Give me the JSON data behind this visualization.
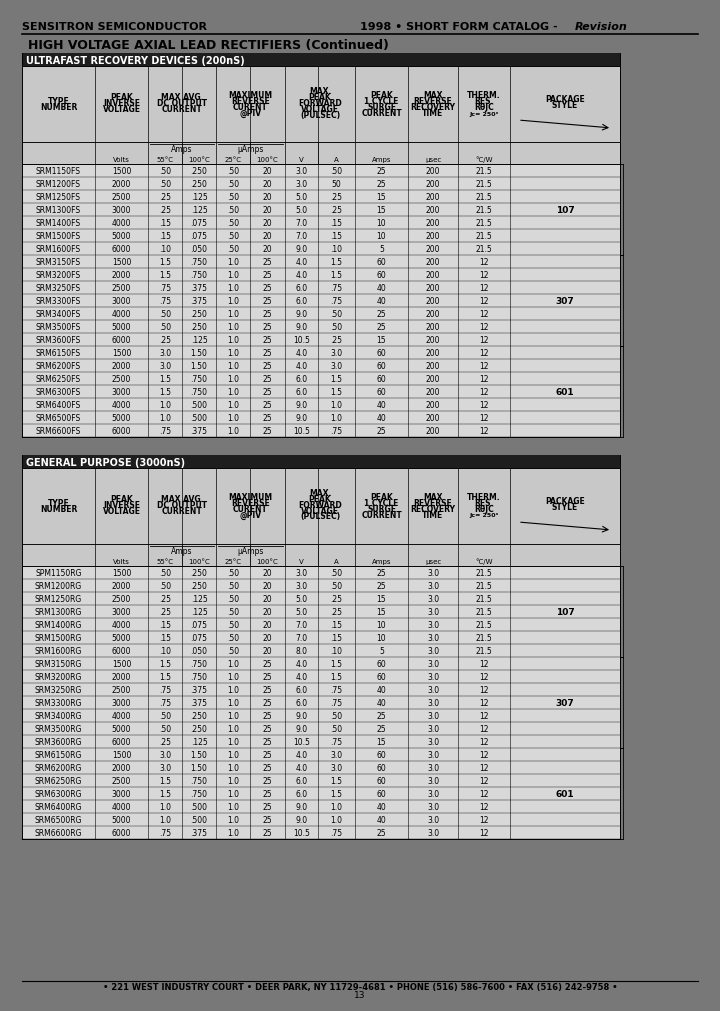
{
  "header_left": "SENSITRON SEMICONDUCTOR",
  "header_right_normal": "1998 • SHORT FORM CATALOG - ",
  "header_right_italic": "Revision",
  "page_title": "HIGH VOLTAGE AXIAL LEAD RECTIFIERS (Continued)",
  "bg_color": "#787878",
  "table_bg": "#c8c8c8",
  "header_bg": "#c8c8c8",
  "title_bg": "#1e1e1e",
  "row_bg": "#d8d8d8",
  "table1_title": "ULTRAFAST RECOVERY DEVICES (200nS)",
  "table2_title": "GENERAL PURPOSE (3000nS)",
  "table1_data": [
    [
      "SRM1150FS",
      "1500",
      ".50",
      ".250",
      ".50",
      "20",
      "3.0",
      ".50",
      "25",
      "200",
      "21.5"
    ],
    [
      "SRM1200FS",
      "2000",
      ".50",
      ".250",
      ".50",
      "20",
      "3.0",
      "50",
      "25",
      "200",
      "21.5"
    ],
    [
      "SRM1250FS",
      "2500",
      ".25",
      ".125",
      ".50",
      "20",
      "5.0",
      ".25",
      "15",
      "200",
      "21.5"
    ],
    [
      "SRM1300FS",
      "3000",
      ".25",
      ".125",
      ".50",
      "20",
      "5.0",
      ".25",
      "15",
      "200",
      "21.5"
    ],
    [
      "SRM1400FS",
      "4000",
      ".15",
      ".075",
      ".50",
      "20",
      "7.0",
      ".15",
      "10",
      "200",
      "21.5"
    ],
    [
      "SRM1500FS",
      "5000",
      ".15",
      ".075",
      ".50",
      "20",
      "7.0",
      ".15",
      "10",
      "200",
      "21.5"
    ],
    [
      "SRM1600FS",
      "6000",
      ".10",
      ".050",
      ".50",
      "20",
      "9.0",
      ".10",
      "5",
      "200",
      "21.5"
    ],
    [
      "SRM3150FS",
      "1500",
      "1.5",
      ".750",
      "1.0",
      "25",
      "4.0",
      "1.5",
      "60",
      "200",
      "12"
    ],
    [
      "SRM3200FS",
      "2000",
      "1.5",
      ".750",
      "1.0",
      "25",
      "4.0",
      "1.5",
      "60",
      "200",
      "12"
    ],
    [
      "SRM3250FS",
      "2500",
      ".75",
      ".375",
      "1.0",
      "25",
      "6.0",
      ".75",
      "40",
      "200",
      "12"
    ],
    [
      "SRM3300FS",
      "3000",
      ".75",
      ".375",
      "1.0",
      "25",
      "6.0",
      ".75",
      "40",
      "200",
      "12"
    ],
    [
      "SRM3400FS",
      "4000",
      ".50",
      ".250",
      "1.0",
      "25",
      "9.0",
      ".50",
      "25",
      "200",
      "12"
    ],
    [
      "SRM3500FS",
      "5000",
      ".50",
      ".250",
      "1.0",
      "25",
      "9.0",
      ".50",
      "25",
      "200",
      "12"
    ],
    [
      "SRM3600FS",
      "6000",
      ".25",
      ".125",
      "1.0",
      "25",
      "10.5",
      ".25",
      "15",
      "200",
      "12"
    ],
    [
      "SRM6150FS",
      "1500",
      "3.0",
      "1.50",
      "1.0",
      "25",
      "4.0",
      "3.0",
      "60",
      "200",
      "12"
    ],
    [
      "SRM6200FS",
      "2000",
      "3.0",
      "1.50",
      "1.0",
      "25",
      "4.0",
      "3.0",
      "60",
      "200",
      "12"
    ],
    [
      "SRM6250FS",
      "2500",
      "1.5",
      ".750",
      "1.0",
      "25",
      "6.0",
      "1.5",
      "60",
      "200",
      "12"
    ],
    [
      "SRM6300FS",
      "3000",
      "1.5",
      ".750",
      "1.0",
      "25",
      "6.0",
      "1.5",
      "60",
      "200",
      "12"
    ],
    [
      "SRM6400FS",
      "4000",
      "1.0",
      ".500",
      "1.0",
      "25",
      "9.0",
      "1.0",
      "40",
      "200",
      "12"
    ],
    [
      "SRM6500FS",
      "5000",
      "1.0",
      ".500",
      "1.0",
      "25",
      "9.0",
      "1.0",
      "40",
      "200",
      "12"
    ],
    [
      "SRM6600FS",
      "6000",
      ".75",
      ".375",
      "1.0",
      "25",
      "10.5",
      ".75",
      "25",
      "200",
      "12"
    ]
  ],
  "table2_data": [
    [
      "SPM1150RG",
      "1500",
      ".50",
      ".250",
      ".50",
      "20",
      "3.0",
      ".50",
      "25",
      "3.0",
      "21.5"
    ],
    [
      "SRM1200RG",
      "2000",
      ".50",
      ".250",
      ".50",
      "20",
      "3.0",
      ".50",
      "25",
      "3.0",
      "21.5"
    ],
    [
      "SRM1250RG",
      "2500",
      ".25",
      ".125",
      ".50",
      "20",
      "5.0",
      ".25",
      "15",
      "3.0",
      "21.5"
    ],
    [
      "SRM1300RG",
      "3000",
      ".25",
      ".125",
      ".50",
      "20",
      "5.0",
      ".25",
      "15",
      "3.0",
      "21.5"
    ],
    [
      "SRM1400RG",
      "4000",
      ".15",
      ".075",
      ".50",
      "20",
      "7.0",
      ".15",
      "10",
      "3.0",
      "21.5"
    ],
    [
      "SRM1500RG",
      "5000",
      ".15",
      ".075",
      ".50",
      "20",
      "7.0",
      ".15",
      "10",
      "3.0",
      "21.5"
    ],
    [
      "SRM1600RG",
      "6000",
      ".10",
      ".050",
      ".50",
      "20",
      "8.0",
      ".10",
      "5",
      "3.0",
      "21.5"
    ],
    [
      "SRM3150RG",
      "1500",
      "1.5",
      ".750",
      "1.0",
      "25",
      "4.0",
      "1.5",
      "60",
      "3.0",
      "12"
    ],
    [
      "SRM3200RG",
      "2000",
      "1.5",
      ".750",
      "1.0",
      "25",
      "4.0",
      "1.5",
      "60",
      "3.0",
      "12"
    ],
    [
      "SRM3250RG",
      "2500",
      ".75",
      ".375",
      "1.0",
      "25",
      "6.0",
      ".75",
      "40",
      "3.0",
      "12"
    ],
    [
      "SRM3300RG",
      "3000",
      ".75",
      ".375",
      "1.0",
      "25",
      "6.0",
      ".75",
      "40",
      "3.0",
      "12"
    ],
    [
      "SRM3400RG",
      "4000",
      ".50",
      ".250",
      "1.0",
      "25",
      "9.0",
      ".50",
      "25",
      "3.0",
      "12"
    ],
    [
      "SRM3500RG",
      "5000",
      ".50",
      ".250",
      "1.0",
      "25",
      "9.0",
      ".50",
      "25",
      "3.0",
      "12"
    ],
    [
      "SRM3600RG",
      "6000",
      ".25",
      ".125",
      "1.0",
      "25",
      "10.5",
      ".75",
      "15",
      "3.0",
      "12"
    ],
    [
      "SRM6150RG",
      "1500",
      "3.0",
      "1.50",
      "1.0",
      "25",
      "4.0",
      "3.0",
      "60",
      "3.0",
      "12"
    ],
    [
      "SRM6200RG",
      "2000",
      "3.0",
      "1.50",
      "1.0",
      "25",
      "4.0",
      "3.0",
      "60",
      "3.0",
      "12"
    ],
    [
      "SRM6250RG",
      "2500",
      "1.5",
      ".750",
      "1.0",
      "25",
      "6.0",
      "1.5",
      "60",
      "3.0",
      "12"
    ],
    [
      "SRM6300RG",
      "3000",
      "1.5",
      ".750",
      "1.0",
      "25",
      "6.0",
      "1.5",
      "60",
      "3.0",
      "12"
    ],
    [
      "SRM6400RG",
      "4000",
      "1.0",
      ".500",
      "1.0",
      "25",
      "9.0",
      "1.0",
      "40",
      "3.0",
      "12"
    ],
    [
      "SRM6500RG",
      "5000",
      "1.0",
      ".500",
      "1.0",
      "25",
      "9.0",
      "1.0",
      "40",
      "3.0",
      "12"
    ],
    [
      "SRM6600RG",
      "6000",
      ".75",
      ".375",
      "1.0",
      "25",
      "10.5",
      ".75",
      "25",
      "3.0",
      "12"
    ]
  ],
  "pkg_groups1": [
    [
      0,
      6,
      "107"
    ],
    [
      7,
      13,
      "307"
    ],
    [
      14,
      20,
      "601"
    ]
  ],
  "pkg_groups2": [
    [
      0,
      6,
      "107"
    ],
    [
      7,
      13,
      "307"
    ],
    [
      14,
      20,
      "601"
    ]
  ],
  "footer": "• 221 WEST INDUSTRY COURT • DEER PARK, NY 11729-4681 • PHONE (516) 586-7600 • FAX (516) 242-9758 •",
  "page_number": "13"
}
